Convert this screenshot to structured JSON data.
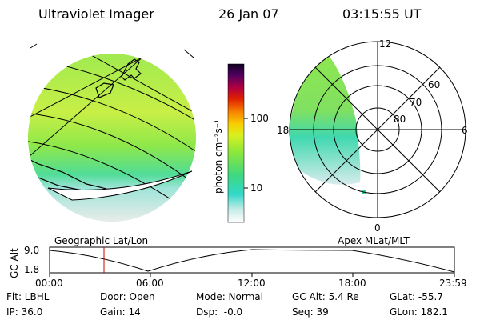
{
  "header": {
    "title": "Ultraviolet Imager",
    "date": "26 Jan 07",
    "time": "03:15:55 UT"
  },
  "colorbar": {
    "unit_label": "photon cm⁻²s⁻¹",
    "ticks": [
      "100",
      "10"
    ]
  },
  "polar_plot": {
    "title": "Apex MLat/MLT",
    "mlt_labels": [
      "12",
      "18",
      "6",
      "0"
    ],
    "lat_labels": [
      "60",
      "70",
      "80"
    ]
  },
  "geo_plot": {
    "title": "Geographic Lat/Lon"
  },
  "altitude_strip": {
    "ylabel": "GC Alt",
    "yticks": [
      "9.0",
      "1.8"
    ],
    "xticks": [
      "00:00",
      "06:00",
      "12:00",
      "18:00",
      "23:59"
    ]
  },
  "footer": {
    "flt": "Flt: LBHL",
    "door": "Door: Open",
    "mode": "Mode: Normal",
    "gc_alt": "GC Alt: 5.4 Re",
    "glat": "GLat: -55.7",
    "ip": "IP: 36.0",
    "gain": "Gain: 14",
    "dsp": "Dsp:  -0.0",
    "seq": "Seq: 39",
    "glon": "GLon: 182.1"
  },
  "colors": {
    "red_marker": "#d00000",
    "green": "#8ee84a",
    "yellow_green": "#c8ee40",
    "cyan": "#30d8c8"
  }
}
